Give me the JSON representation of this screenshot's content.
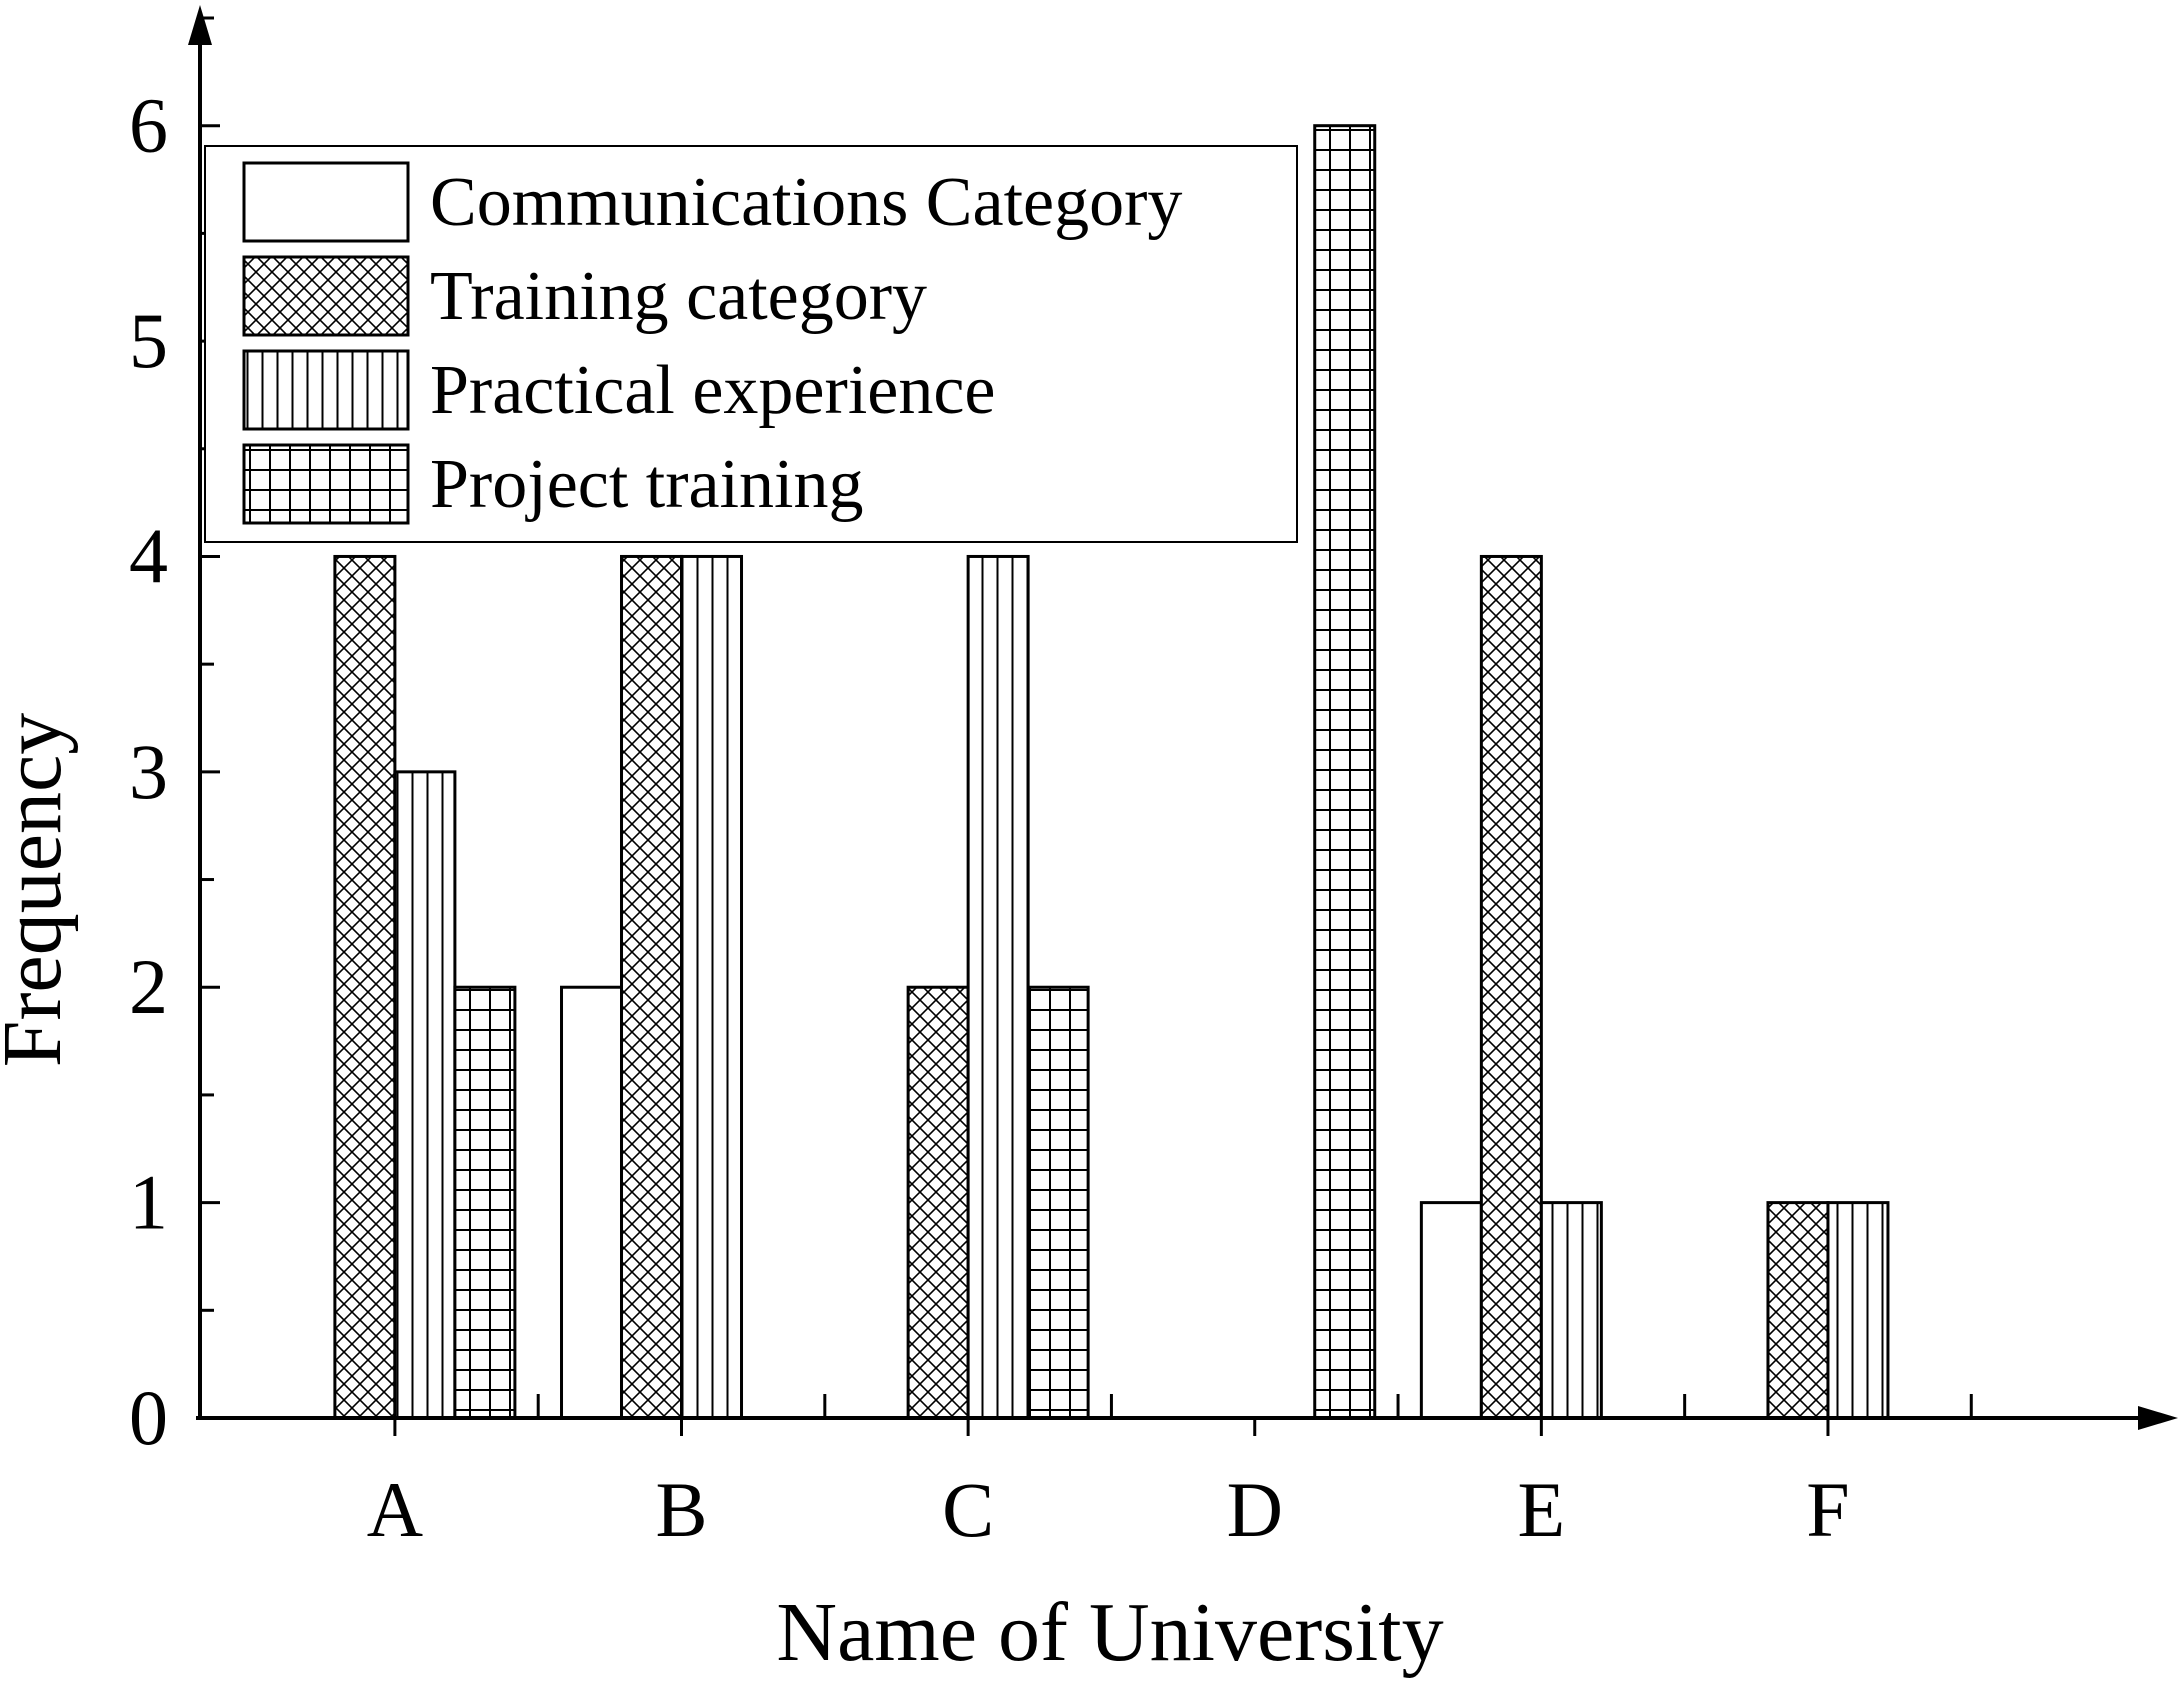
{
  "chart_data": {
    "type": "bar",
    "categories": [
      "A",
      "B",
      "C",
      "D",
      "E",
      "F"
    ],
    "series": [
      {
        "name": "Communications Category",
        "pattern": "blank",
        "values": [
          0,
          2,
          0,
          0,
          1,
          0
        ]
      },
      {
        "name": "Training category",
        "pattern": "crosshatch",
        "values": [
          4,
          4,
          2,
          0,
          4,
          1
        ]
      },
      {
        "name": "Practical experience",
        "pattern": "vertical",
        "values": [
          3,
          4,
          4,
          0,
          1,
          1
        ]
      },
      {
        "name": "Project training",
        "pattern": "grid",
        "values": [
          2,
          0,
          2,
          6,
          0,
          0
        ]
      }
    ],
    "xlabel": "Name of University",
    "ylabel": "Frequency",
    "ylim": [
      0,
      6.5
    ],
    "yticks": [
      0,
      1,
      2,
      3,
      4,
      5,
      6
    ],
    "grid": false,
    "legend_position": "top-left"
  }
}
